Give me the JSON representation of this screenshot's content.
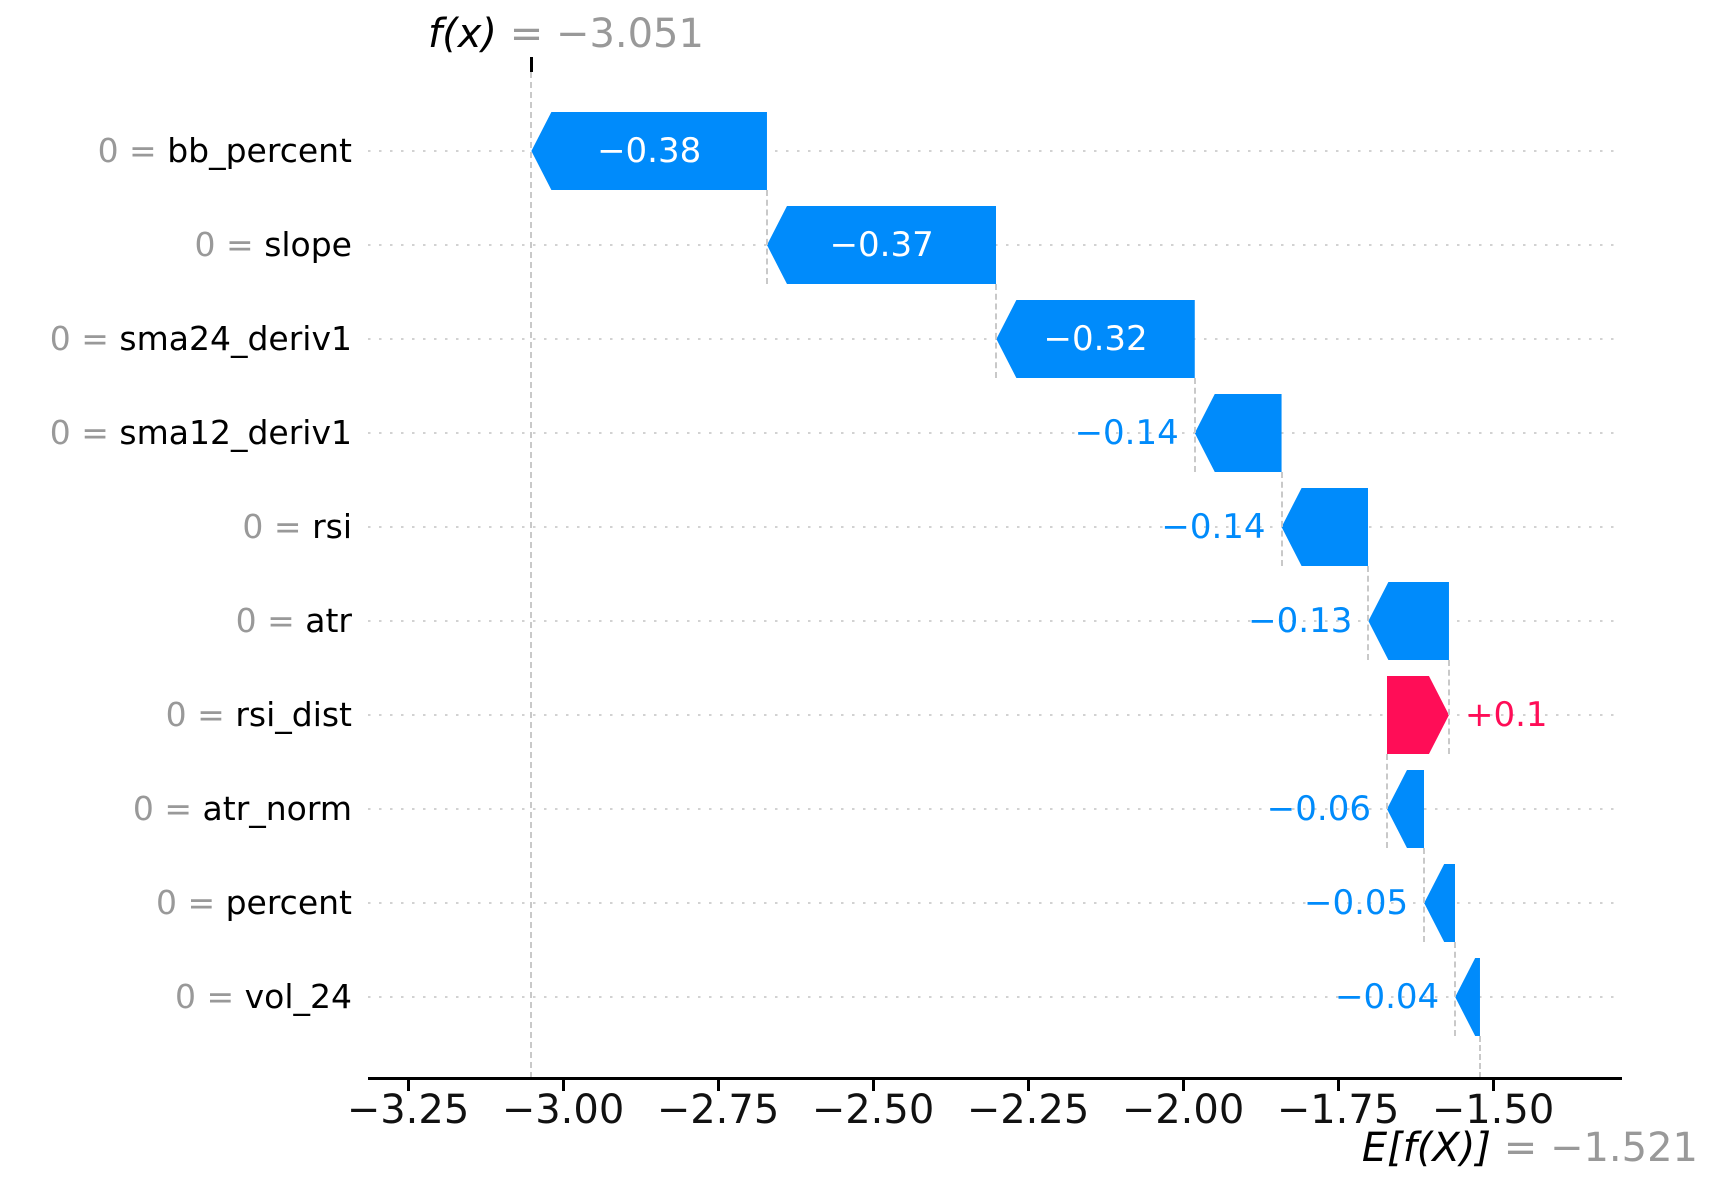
{
  "chart_data": {
    "type": "waterfall",
    "library_style": "shap-waterfall",
    "title": {
      "function_label": "f(x)",
      "equals_value": " = −3.051",
      "fx": -3.051
    },
    "base": {
      "label": "E[f(X)]",
      "equals_value": " = −1.521",
      "value": -1.521
    },
    "x_axis": {
      "tick_labels": [
        "−3.25",
        "−3.00",
        "−2.75",
        "−2.50",
        "−2.25",
        "−2.00",
        "−1.75",
        "−1.50"
      ],
      "tick_values": [
        -3.25,
        -3.0,
        -2.75,
        -2.5,
        -2.25,
        -2.0,
        -1.75,
        -1.5
      ],
      "grid": "dotted-row-guides"
    },
    "feature_separator": " = ",
    "features": [
      {
        "name": "bb_percent",
        "feature_value": "0",
        "shap_value": -0.38,
        "label": "−0.38",
        "label_placement": "inside"
      },
      {
        "name": "slope",
        "feature_value": "0",
        "shap_value": -0.37,
        "label": "−0.37",
        "label_placement": "inside"
      },
      {
        "name": "sma24_deriv1",
        "feature_value": "0",
        "shap_value": -0.32,
        "label": "−0.32",
        "label_placement": "inside"
      },
      {
        "name": "sma12_deriv1",
        "feature_value": "0",
        "shap_value": -0.14,
        "label": "−0.14",
        "label_placement": "left"
      },
      {
        "name": "rsi",
        "feature_value": "0",
        "shap_value": -0.14,
        "label": "−0.14",
        "label_placement": "left"
      },
      {
        "name": "atr",
        "feature_value": "0",
        "shap_value": -0.13,
        "label": "−0.13",
        "label_placement": "left"
      },
      {
        "name": "rsi_dist",
        "feature_value": "0",
        "shap_value": 0.1,
        "label": "+0.1",
        "label_placement": "right"
      },
      {
        "name": "atr_norm",
        "feature_value": "0",
        "shap_value": -0.06,
        "label": "−0.06",
        "label_placement": "left"
      },
      {
        "name": "percent",
        "feature_value": "0",
        "shap_value": -0.05,
        "label": "−0.05",
        "label_placement": "left"
      },
      {
        "name": "vol_24",
        "feature_value": "0",
        "shap_value": -0.04,
        "label": "−0.04",
        "label_placement": "left"
      }
    ],
    "colors": {
      "negative_bar": "#008bfb",
      "positive_bar": "#ff0d57",
      "muted_text": "#999999",
      "dashed_line": "#c9c9c9",
      "row_guide": "#d2d2d2",
      "axis": "#000000"
    }
  }
}
